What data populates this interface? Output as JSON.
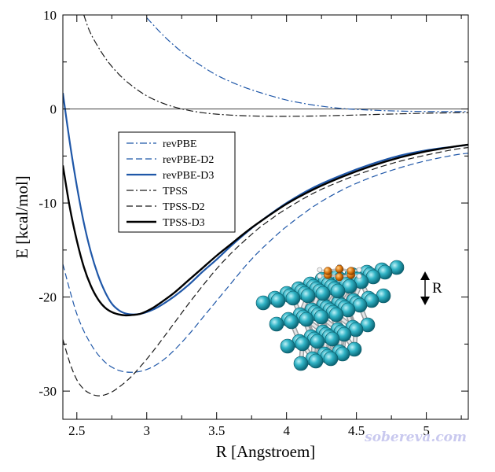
{
  "chart_data": {
    "type": "line",
    "xlabel": "R [Angstroem]",
    "ylabel": "E [kcal/mol]",
    "xlim": [
      2.4,
      5.3
    ],
    "ylim": [
      -33,
      10
    ],
    "x_ticks": [
      2.5,
      3,
      3.5,
      4,
      4.5,
      5
    ],
    "x_tick_labels": [
      "2.5",
      "3",
      "3.5",
      "4",
      "4.5",
      "5"
    ],
    "y_ticks": [
      10,
      0,
      -10,
      -20,
      -30
    ],
    "y_tick_labels": [
      "10",
      "0",
      "-10",
      "-20",
      "-30"
    ],
    "reference_line_y": 0,
    "grid": false,
    "legend_position": "upper-left",
    "inset_label": "R",
    "watermark": "sobereva.com",
    "series": [
      {
        "name": "revPBE",
        "color": "#1f57a8",
        "style": "dashdot",
        "width": 1.2,
        "x": [
          3.0,
          3.1,
          3.2,
          3.3,
          3.4,
          3.5,
          3.6,
          3.7,
          3.8,
          3.9,
          4.0,
          4.1,
          4.2,
          4.3,
          4.4,
          4.5,
          4.6,
          4.7,
          4.8,
          4.9,
          5.0,
          5.1,
          5.2,
          5.3
        ],
        "y": [
          9.7,
          8.1,
          6.7,
          5.5,
          4.5,
          3.6,
          2.9,
          2.3,
          1.8,
          1.35,
          0.95,
          0.65,
          0.4,
          0.2,
          0.05,
          -0.05,
          -0.12,
          -0.18,
          -0.22,
          -0.25,
          -0.27,
          -0.28,
          -0.28,
          -0.28
        ]
      },
      {
        "name": "revPBE-D2",
        "color": "#1f57a8",
        "style": "dashed",
        "width": 1.2,
        "x": [
          2.4,
          2.5,
          2.6,
          2.7,
          2.8,
          2.9,
          3.0,
          3.1,
          3.2,
          3.3,
          3.4,
          3.5,
          3.6,
          3.7,
          3.8,
          3.9,
          4.0,
          4.2,
          4.4,
          4.6,
          4.8,
          5.0,
          5.2,
          5.3
        ],
        "y": [
          -16.5,
          -21.8,
          -25.0,
          -26.9,
          -27.8,
          -28.0,
          -27.7,
          -26.9,
          -25.6,
          -24.0,
          -22.2,
          -20.4,
          -18.6,
          -16.8,
          -15.2,
          -13.8,
          -12.5,
          -10.3,
          -8.6,
          -7.3,
          -6.3,
          -5.5,
          -4.9,
          -4.7
        ]
      },
      {
        "name": "revPBE-D3",
        "color": "#1f57a8",
        "style": "solid",
        "width": 2.2,
        "x": [
          2.4,
          2.45,
          2.5,
          2.55,
          2.6,
          2.65,
          2.7,
          2.75,
          2.8,
          2.85,
          2.9,
          2.95,
          3.0,
          3.05,
          3.1,
          3.2,
          3.3,
          3.4,
          3.5,
          3.6,
          3.7,
          3.8,
          4.0,
          4.2,
          4.4,
          4.6,
          4.8,
          5.0,
          5.2,
          5.3
        ],
        "y": [
          1.7,
          -3.6,
          -8.2,
          -12.1,
          -15.2,
          -17.6,
          -19.4,
          -20.7,
          -21.4,
          -21.75,
          -21.85,
          -21.8,
          -21.6,
          -21.3,
          -20.9,
          -19.9,
          -18.7,
          -17.3,
          -16.0,
          -14.6,
          -13.3,
          -12.1,
          -10.0,
          -8.3,
          -7.0,
          -5.9,
          -5.0,
          -4.4,
          -4.0,
          -3.8
        ]
      },
      {
        "name": "TPSS",
        "color": "#1a1a1a",
        "style": "dashdot",
        "width": 1.2,
        "x": [
          2.55,
          2.6,
          2.7,
          2.8,
          2.9,
          3.0,
          3.1,
          3.2,
          3.3,
          3.4,
          3.5,
          3.6,
          3.7,
          3.8,
          3.9,
          4.0,
          4.2,
          4.4,
          4.6,
          4.8,
          5.0,
          5.2,
          5.3
        ],
        "y": [
          10.0,
          8.0,
          5.5,
          3.7,
          2.4,
          1.4,
          0.7,
          0.2,
          -0.15,
          -0.4,
          -0.55,
          -0.65,
          -0.72,
          -0.76,
          -0.78,
          -0.78,
          -0.75,
          -0.68,
          -0.6,
          -0.52,
          -0.45,
          -0.4,
          -0.38
        ]
      },
      {
        "name": "TPSS-D2",
        "color": "#1a1a1a",
        "style": "dashed",
        "width": 1.2,
        "x": [
          2.4,
          2.45,
          2.5,
          2.55,
          2.6,
          2.65,
          2.7,
          2.75,
          2.8,
          2.85,
          2.9,
          3.0,
          3.1,
          3.2,
          3.3,
          3.4,
          3.5,
          3.6,
          3.7,
          3.8,
          3.9,
          4.0,
          4.2,
          4.4,
          4.6,
          4.8,
          5.0,
          5.2,
          5.3
        ],
        "y": [
          -24.5,
          -27.0,
          -28.8,
          -29.8,
          -30.3,
          -30.5,
          -30.4,
          -30.1,
          -29.6,
          -29.0,
          -28.3,
          -26.6,
          -24.7,
          -22.7,
          -20.7,
          -18.8,
          -17.0,
          -15.4,
          -14.0,
          -12.7,
          -11.6,
          -10.6,
          -8.9,
          -7.6,
          -6.5,
          -5.6,
          -4.9,
          -4.3,
          -4.1
        ]
      },
      {
        "name": "TPSS-D3",
        "color": "#000000",
        "style": "solid",
        "width": 2.4,
        "x": [
          2.4,
          2.45,
          2.5,
          2.55,
          2.6,
          2.65,
          2.7,
          2.75,
          2.8,
          2.85,
          2.9,
          2.95,
          3.0,
          3.05,
          3.1,
          3.2,
          3.3,
          3.4,
          3.5,
          3.6,
          3.7,
          3.8,
          4.0,
          4.2,
          4.4,
          4.6,
          4.8,
          5.0,
          5.2,
          5.3
        ],
        "y": [
          -6.0,
          -10.5,
          -14.0,
          -16.8,
          -18.8,
          -20.2,
          -21.1,
          -21.6,
          -21.85,
          -21.95,
          -21.9,
          -21.8,
          -21.5,
          -21.1,
          -20.6,
          -19.5,
          -18.2,
          -16.9,
          -15.6,
          -14.4,
          -13.2,
          -12.1,
          -10.1,
          -8.5,
          -7.2,
          -6.1,
          -5.2,
          -4.5,
          -4.0,
          -3.8
        ]
      }
    ]
  }
}
